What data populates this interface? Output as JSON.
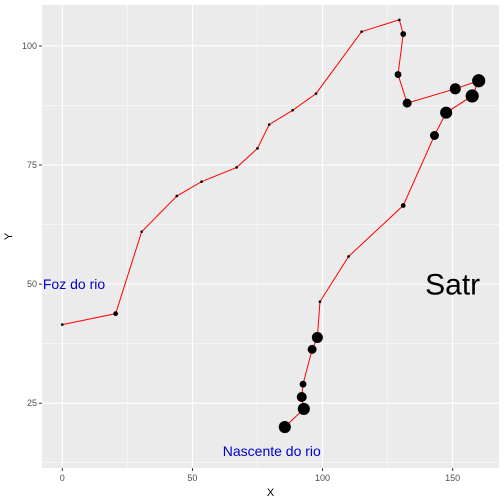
{
  "chart_data": {
    "type": "scatter",
    "xlabel": "X",
    "ylabel": "Y",
    "xlim": [
      -7.8,
      167.8
    ],
    "ylim": [
      11.4,
      108.6
    ],
    "xticks": [
      0,
      50,
      100,
      150
    ],
    "yticks": [
      25,
      50,
      75,
      100
    ],
    "grid": true,
    "points": [
      {
        "x": 0,
        "y": 41.5,
        "size": 0.5
      },
      {
        "x": 20.5,
        "y": 43.8,
        "size": 1.5
      },
      {
        "x": 30.5,
        "y": 61.0,
        "size": 0.5
      },
      {
        "x": 44.0,
        "y": 68.5,
        "size": 0.5
      },
      {
        "x": 53.5,
        "y": 71.5,
        "size": 0.5
      },
      {
        "x": 67.0,
        "y": 74.5,
        "size": 0.5
      },
      {
        "x": 75.0,
        "y": 78.5,
        "size": 0.5
      },
      {
        "x": 79.5,
        "y": 83.5,
        "size": 0.5
      },
      {
        "x": 88.5,
        "y": 86.5,
        "size": 0.5
      },
      {
        "x": 97.5,
        "y": 90.0,
        "size": 0.5
      },
      {
        "x": 115.0,
        "y": 103.0,
        "size": 0.5
      },
      {
        "x": 129.5,
        "y": 105.5,
        "size": 0.5
      },
      {
        "x": 131.0,
        "y": 102.5,
        "size": 2.0
      },
      {
        "x": 129.0,
        "y": 94.0,
        "size": 2.5
      },
      {
        "x": 132.5,
        "y": 88.0,
        "size": 3.5
      },
      {
        "x": 151.0,
        "y": 91.0,
        "size": 4.5
      },
      {
        "x": 160.0,
        "y": 92.7,
        "size": 5.5
      },
      {
        "x": 157.5,
        "y": 89.5,
        "size": 5.5
      },
      {
        "x": 147.5,
        "y": 86.0,
        "size": 5.0
      },
      {
        "x": 143.0,
        "y": 81.2,
        "size": 3.5
      },
      {
        "x": 131.0,
        "y": 66.5,
        "size": 1.5
      },
      {
        "x": 110.0,
        "y": 55.8,
        "size": 0.5
      },
      {
        "x": 99.0,
        "y": 46.3,
        "size": 0.5
      },
      {
        "x": 98.0,
        "y": 38.8,
        "size": 4.5
      },
      {
        "x": 96.0,
        "y": 36.3,
        "size": 3.5
      },
      {
        "x": 92.5,
        "y": 29.0,
        "size": 2.5
      },
      {
        "x": 92.0,
        "y": 26.3,
        "size": 4.0
      },
      {
        "x": 92.8,
        "y": 23.8,
        "size": 5.0
      },
      {
        "x": 85.5,
        "y": 20.0,
        "size": 5.0
      }
    ],
    "line_color": "#ff0000",
    "point_color": "#000000",
    "panel_color": "#ebebeb",
    "annotations": [
      {
        "text": "Foz do rio",
        "x": 4.5,
        "y": 50,
        "color": "#0000cd",
        "size": 14
      },
      {
        "text": "Nascente do rio",
        "x": 80.5,
        "y": 15,
        "color": "#0000cd",
        "size": 14
      },
      {
        "text": "Satr",
        "x": 150,
        "y": 50,
        "color": "#000000",
        "size": 30
      }
    ]
  }
}
